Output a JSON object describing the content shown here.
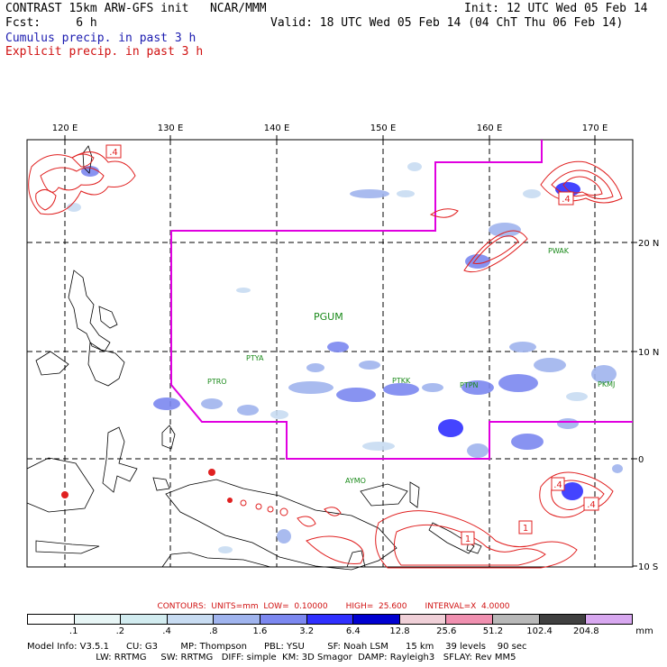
{
  "header": {
    "line1_left": "CONTRAST 15km ARW-GFS init   NCAR/MMM",
    "line1_right": "Init: 12 UTC Wed 05 Feb 14",
    "line2_left": "Fcst:     6 h",
    "line2_right": "Valid: 18 UTC Wed 05 Feb 14 (04 ChT Thu 06 Feb 14)",
    "cumulus_label": "Cumulus precip. in past 3 h",
    "explicit_label": "Explicit precip. in past 3 h"
  },
  "map": {
    "lon_labels": [
      "120 E",
      "130 E",
      "140 E",
      "150 E",
      "160 E",
      "170 E"
    ],
    "lat_labels": [
      "20 N",
      "10 N",
      "0",
      "10 S"
    ],
    "stations": [
      {
        "id": "PGUM",
        "color": "#1a8a1a"
      },
      {
        "id": "PTYA",
        "color": "#1a8a1a"
      },
      {
        "id": "PTRO",
        "color": "#1a8a1a"
      },
      {
        "id": "PTKK",
        "color": "#1a8a1a"
      },
      {
        "id": "PTPN",
        "color": "#1a8a1a"
      },
      {
        "id": "PWAK",
        "color": "#1a8a1a"
      },
      {
        "id": "PKMJ",
        "color": "#1a8a1a"
      },
      {
        "id": "AYMO",
        "color": "#1a8a1a"
      }
    ],
    "contour_boxes": [
      ".4",
      ".4",
      ".4",
      "1",
      "1",
      ".4"
    ]
  },
  "contours_line": {
    "label": "CONTOURS:  UNITS=mm  LOW=  0.10000       HIGH=  25.600       INTERVAL=X  4.0000"
  },
  "colorbar": {
    "colors": [
      "#ffffff",
      "#e8f6f6",
      "#d2ecf0",
      "#c8dcf2",
      "#a0b4ee",
      "#7c88f0",
      "#3030ff",
      "#0000d0",
      "#f0d0d8",
      "#f090b0",
      "#b8b8b8",
      "#404040",
      "#d8a8f0"
    ],
    "labels": [
      ".1",
      ".2",
      ".4",
      ".8",
      "1.6",
      "3.2",
      "6.4",
      "12.8",
      "25.6",
      "51.2",
      "102.4",
      "204.8"
    ],
    "unit": "mm"
  },
  "model_info": {
    "line1": "Model Info: V3.5.1      CU: G3        MP: Thompson      PBL: YSU        SF: Noah LSM      15 km    39 levels    90 sec",
    "line2": "                        LW: RRTMG     SW: RRTMG   DIFF: simple  KM: 3D Smagor  DAMP: Rayleigh3   SFLAY: Rev MM5"
  }
}
